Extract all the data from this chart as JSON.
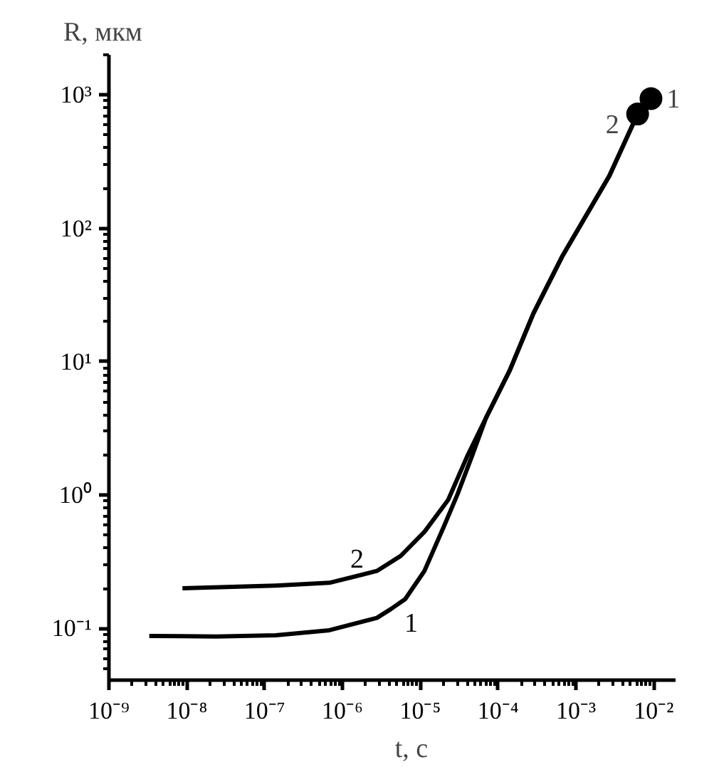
{
  "chart_data": {
    "type": "line",
    "xlabel": "t, с",
    "ylabel": "R, мкм",
    "log": "xy",
    "xlim": [
      1e-09,
      0.019
    ],
    "ylim": [
      0.041,
      2000
    ],
    "xticks": [
      {
        "value": 1e-09,
        "label": "10⁻⁹"
      },
      {
        "value": 1e-08,
        "label": "10⁻⁸"
      },
      {
        "value": 1e-07,
        "label": "10⁻⁷"
      },
      {
        "value": 1e-06,
        "label": "10⁻⁶"
      },
      {
        "value": 1e-05,
        "label": "10⁻⁵"
      },
      {
        "value": 0.0001,
        "label": "10⁻⁴"
      },
      {
        "value": 0.001,
        "label": "10⁻³"
      },
      {
        "value": 0.01,
        "label": "10⁻²"
      }
    ],
    "yticks": [
      {
        "value": 0.1,
        "label": "10⁻¹"
      },
      {
        "value": 1,
        "label": "10⁰"
      },
      {
        "value": 10,
        "label": "10¹"
      },
      {
        "value": 100,
        "label": "10²"
      },
      {
        "value": 1000,
        "label": "10³"
      }
    ],
    "series": [
      {
        "name": "1",
        "color": "#000000",
        "x": [
          3.3e-09,
          2.4e-08,
          1.4e-07,
          6.8e-07,
          2.77e-06,
          4.2e-06,
          6.4e-06,
          1.13e-05,
          1.98e-05,
          3e-05,
          4.6e-05,
          7e-05,
          0.000141,
          0.000284,
          0.00066,
          0.00269,
          0.0062,
          0.0092
        ],
        "values": [
          0.088,
          0.087,
          0.089,
          0.097,
          0.12,
          0.14,
          0.166,
          0.27,
          0.57,
          1.01,
          1.95,
          3.8,
          8.6,
          23,
          61,
          248,
          720,
          940
        ]
      },
      {
        "name": "2",
        "color": "#000000",
        "x": [
          8.8e-09,
          1.4e-07,
          6.8e-07,
          2.77e-06,
          5.6e-06,
          1.13e-05,
          2.28e-05,
          4e-05,
          7e-05,
          0.000141,
          0.000284,
          0.00066,
          0.00269,
          0.0062
        ],
        "values": [
          0.2,
          0.21,
          0.22,
          0.27,
          0.35,
          0.53,
          0.92,
          1.95,
          3.8,
          8.6,
          23,
          61,
          248,
          720
        ]
      },
      {
        "type": "scatter",
        "marker": "circle",
        "color": "#000000",
        "x": [
          0.0092,
          0.0062
        ],
        "values": [
          940,
          720
        ]
      }
    ],
    "annotations": [
      {
        "text": "1",
        "x": 0.0092,
        "y": 940
      },
      {
        "text": "2",
        "x": 0.0062,
        "y": 720
      }
    ]
  }
}
